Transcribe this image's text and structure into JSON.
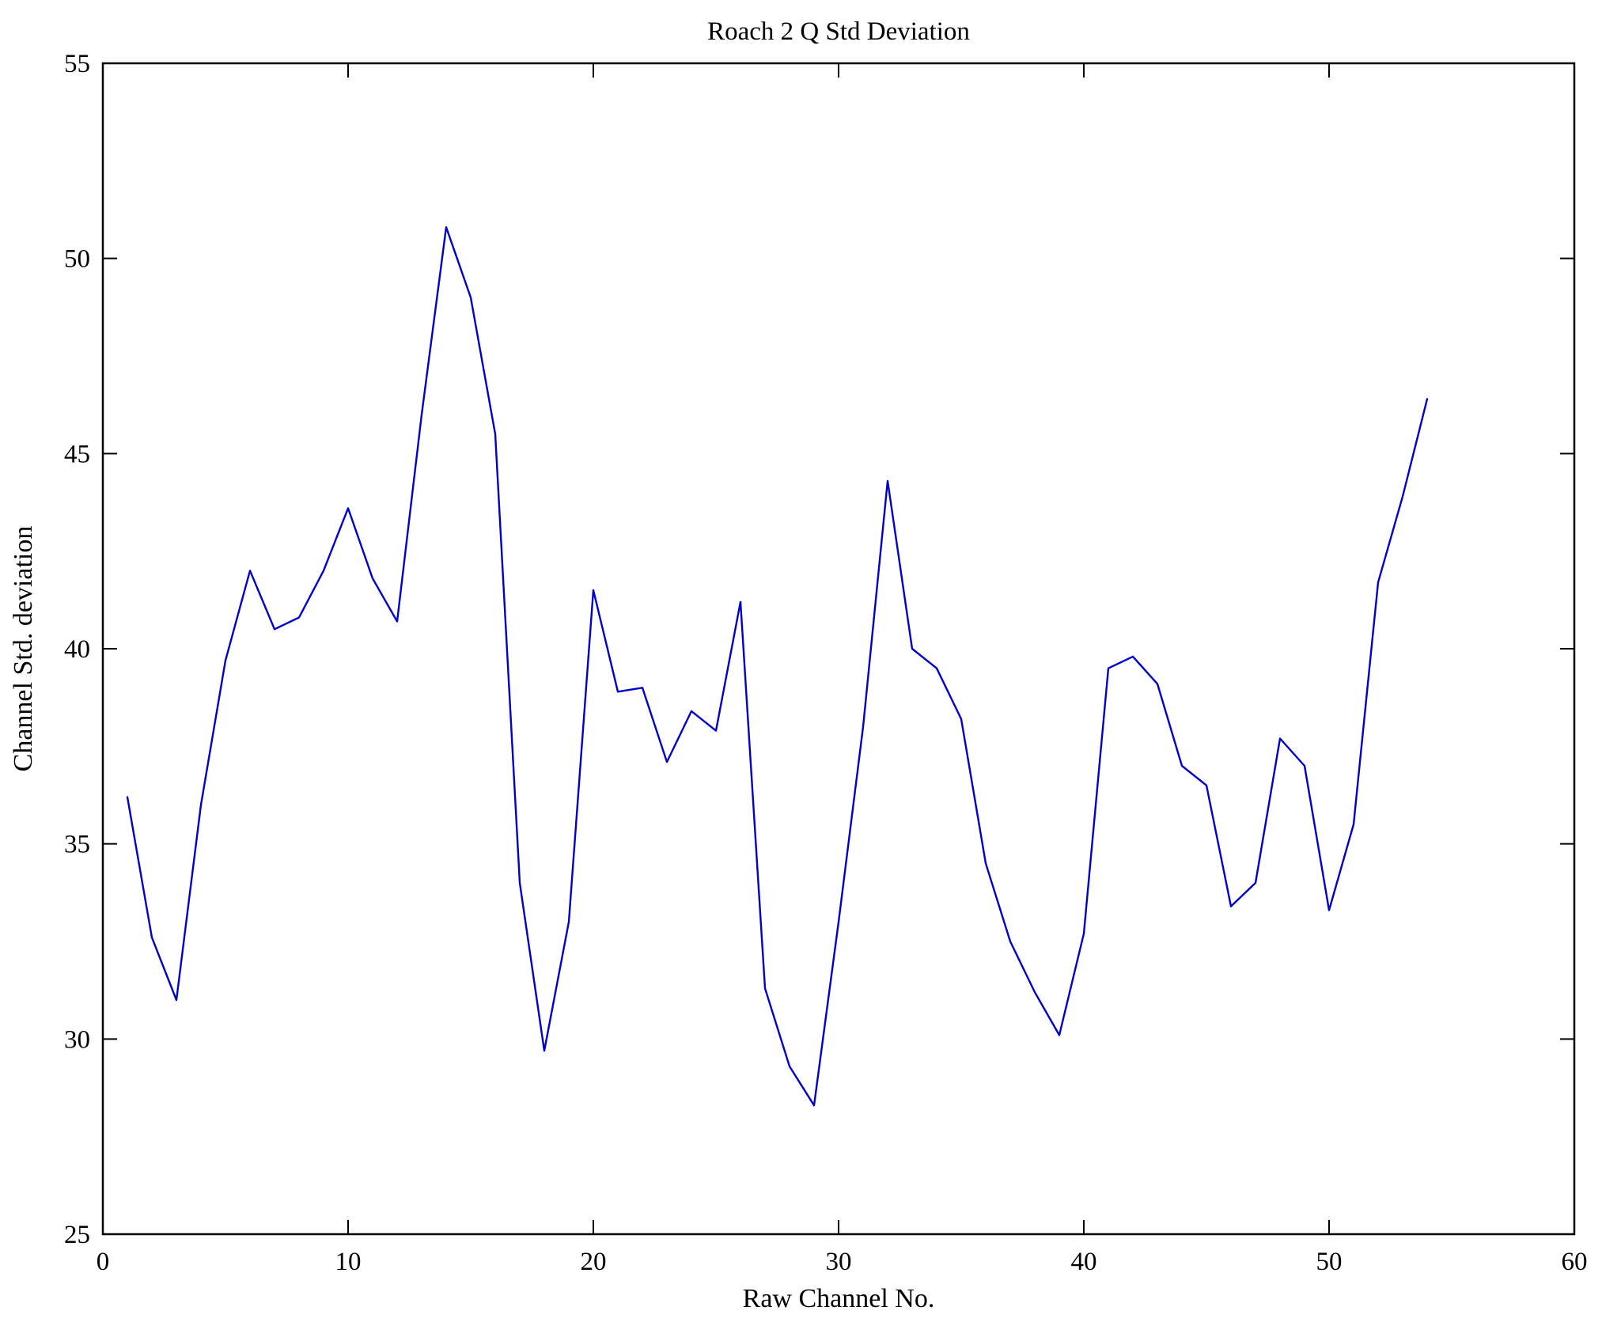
{
  "chart_data": {
    "type": "line",
    "title": "Roach 2 Q Std Deviation",
    "xlabel": "Raw Channel No.",
    "ylabel": "Channel Std. deviation",
    "xlim": [
      0,
      60
    ],
    "ylim": [
      25,
      55
    ],
    "xticks": [
      0,
      10,
      20,
      30,
      40,
      50,
      60
    ],
    "yticks": [
      25,
      30,
      35,
      40,
      45,
      50,
      55
    ],
    "grid": false,
    "legend": "none",
    "line_color": "#0000cc",
    "axis_color": "#000000",
    "series_name": "Channel Std. deviation",
    "x": [
      1,
      2,
      3,
      4,
      5,
      6,
      7,
      8,
      9,
      10,
      11,
      12,
      13,
      14,
      15,
      16,
      17,
      18,
      19,
      20,
      21,
      22,
      23,
      24,
      25,
      26,
      27,
      28,
      29,
      30,
      31,
      32,
      33,
      34,
      35,
      36,
      37,
      38,
      39,
      40,
      41,
      42,
      43,
      44,
      45,
      46,
      47,
      48,
      49,
      50,
      51,
      52,
      53,
      54
    ],
    "y": [
      36.2,
      32.6,
      31.0,
      36.0,
      39.7,
      42.0,
      40.5,
      40.8,
      42.0,
      43.6,
      41.8,
      40.7,
      46.0,
      50.8,
      49.0,
      45.5,
      34.0,
      29.7,
      33.0,
      41.5,
      38.9,
      39.0,
      37.1,
      38.4,
      37.9,
      41.2,
      31.3,
      29.3,
      28.3,
      33.0,
      38.0,
      44.3,
      40.0,
      39.5,
      38.2,
      34.5,
      32.5,
      31.2,
      30.1,
      32.7,
      39.5,
      39.8,
      39.1,
      37.0,
      36.5,
      33.4,
      34.0,
      37.7,
      37.0,
      33.3,
      35.5,
      41.7,
      43.9,
      46.4
    ]
  }
}
